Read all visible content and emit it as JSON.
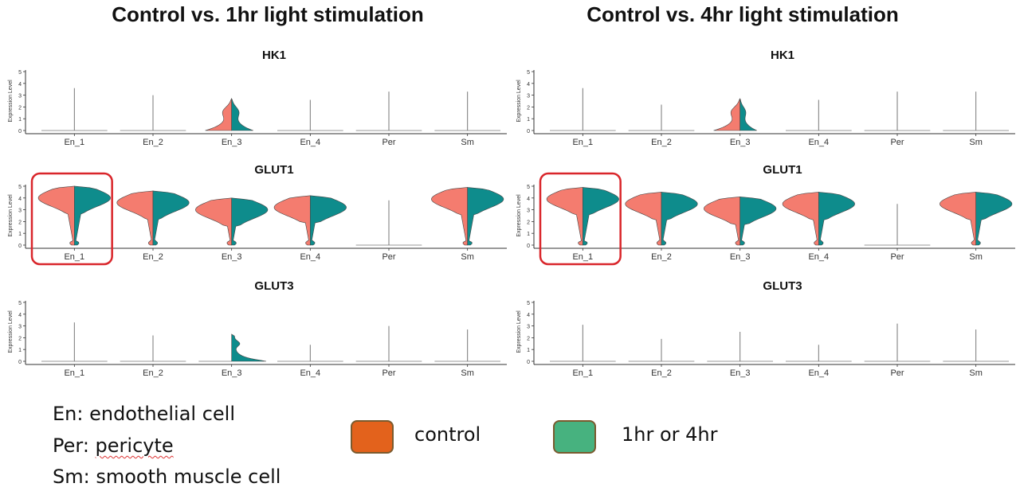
{
  "panels": [
    {
      "title": "Control vs. 1hr light stimulation",
      "rows": [
        {
          "gene": "HK1",
          "highlight_first": false,
          "cells": [
            {
              "cat": "En_1",
              "type": "line",
              "top": 3.6
            },
            {
              "cat": "En_2",
              "type": "line",
              "top": 3.0
            },
            {
              "cat": "En_3",
              "type": "violin",
              "top": 2.7,
              "ctrl_w": 0.55,
              "trt_w": 0.45
            },
            {
              "cat": "En_4",
              "type": "line",
              "top": 2.6
            },
            {
              "cat": "Per",
              "type": "line",
              "top": 3.3
            },
            {
              "cat": "Sm",
              "type": "line",
              "top": 3.3
            }
          ]
        },
        {
          "gene": "GLUT1",
          "highlight_first": true,
          "cells": [
            {
              "cat": "En_1",
              "type": "violin2",
              "top": 5.0
            },
            {
              "cat": "En_2",
              "type": "violin2",
              "top": 4.6
            },
            {
              "cat": "En_3",
              "type": "violin2",
              "top": 4.0
            },
            {
              "cat": "En_4",
              "type": "violin2",
              "top": 4.2
            },
            {
              "cat": "Per",
              "type": "line",
              "top": 3.8
            },
            {
              "cat": "Sm",
              "type": "violin2",
              "top": 4.9
            }
          ]
        },
        {
          "gene": "GLUT3",
          "highlight_first": false,
          "cells": [
            {
              "cat": "En_1",
              "type": "line",
              "top": 3.3
            },
            {
              "cat": "En_2",
              "type": "line",
              "top": 2.2
            },
            {
              "cat": "En_3",
              "type": "violin_trt",
              "top": 2.3
            },
            {
              "cat": "En_4",
              "type": "line",
              "top": 1.4
            },
            {
              "cat": "Per",
              "type": "line",
              "top": 3.0
            },
            {
              "cat": "Sm",
              "type": "line",
              "top": 2.7
            }
          ]
        }
      ]
    },
    {
      "title": "Control vs. 4hr light stimulation",
      "rows": [
        {
          "gene": "HK1",
          "highlight_first": false,
          "cells": [
            {
              "cat": "En_1",
              "type": "line",
              "top": 3.6
            },
            {
              "cat": "En_2",
              "type": "line",
              "top": 2.2
            },
            {
              "cat": "En_3",
              "type": "violin",
              "top": 2.7,
              "ctrl_w": 0.55,
              "trt_w": 0.35
            },
            {
              "cat": "En_4",
              "type": "line",
              "top": 2.6
            },
            {
              "cat": "Per",
              "type": "line",
              "top": 3.3
            },
            {
              "cat": "Sm",
              "type": "line",
              "top": 3.3
            }
          ]
        },
        {
          "gene": "GLUT1",
          "highlight_first": true,
          "cells": [
            {
              "cat": "En_1",
              "type": "violin2",
              "top": 4.9
            },
            {
              "cat": "En_2",
              "type": "violin2",
              "top": 4.5
            },
            {
              "cat": "En_3",
              "type": "violin2",
              "top": 4.1
            },
            {
              "cat": "En_4",
              "type": "violin2",
              "top": 4.5
            },
            {
              "cat": "Per",
              "type": "line",
              "top": 3.5
            },
            {
              "cat": "Sm",
              "type": "violin2",
              "top": 4.5
            }
          ]
        },
        {
          "gene": "GLUT3",
          "highlight_first": false,
          "cells": [
            {
              "cat": "En_1",
              "type": "line",
              "top": 3.1
            },
            {
              "cat": "En_2",
              "type": "line",
              "top": 1.9
            },
            {
              "cat": "En_3",
              "type": "line",
              "top": 2.5
            },
            {
              "cat": "En_4",
              "type": "line",
              "top": 1.4
            },
            {
              "cat": "Per",
              "type": "line",
              "top": 3.2
            },
            {
              "cat": "Sm",
              "type": "line",
              "top": 2.7
            }
          ]
        }
      ]
    }
  ],
  "y_axis": {
    "label": "Expression Level",
    "ticks": [
      "0",
      "1",
      "2",
      "3",
      "4",
      "5"
    ]
  },
  "colors": {
    "control": "#f47c6f",
    "treatment": "#0e8c8c",
    "highlight": "#d9262b",
    "legend_control": "#e3621c",
    "legend_treatment": "#47b27f"
  },
  "legend": {
    "control_label": "control",
    "treatment_label": "1hr or 4hr"
  },
  "footnotes": {
    "en_prefix": "En: ",
    "en_text": "endothelial cell",
    "per_prefix": "Per: ",
    "per_text": "pericyte",
    "sm_prefix": "Sm: ",
    "sm_text": "smooth muscle cell"
  },
  "chart_data": [
    {
      "type": "violin",
      "title": "Control vs. 1hr light stimulation — HK1",
      "categories": [
        "En_1",
        "En_2",
        "En_3",
        "En_4",
        "Per",
        "Sm"
      ],
      "ylabel": "Expression Level",
      "ylim": [
        0,
        5
      ],
      "series": [
        {
          "name": "control",
          "values": [
            0,
            0,
            2.7,
            0,
            0,
            0
          ]
        },
        {
          "name": "1hr or 4hr",
          "values": [
            0,
            0,
            2.7,
            0,
            0,
            0
          ]
        }
      ]
    },
    {
      "type": "violin",
      "title": "Control vs. 1hr light stimulation — GLUT1",
      "categories": [
        "En_1",
        "En_2",
        "En_3",
        "En_4",
        "Per",
        "Sm"
      ],
      "ylabel": "Expression Level",
      "ylim": [
        0,
        5
      ],
      "series": [
        {
          "name": "control",
          "values": [
            5.0,
            4.6,
            4.0,
            4.2,
            0,
            4.9
          ]
        },
        {
          "name": "1hr or 4hr",
          "values": [
            5.0,
            4.6,
            4.0,
            4.2,
            0,
            4.9
          ]
        }
      ]
    },
    {
      "type": "violin",
      "title": "Control vs. 1hr light stimulation — GLUT3",
      "categories": [
        "En_1",
        "En_2",
        "En_3",
        "En_4",
        "Per",
        "Sm"
      ],
      "ylabel": "Expression Level",
      "ylim": [
        0,
        5
      ],
      "series": [
        {
          "name": "control",
          "values": [
            0,
            0,
            0,
            0,
            0,
            0
          ]
        },
        {
          "name": "1hr or 4hr",
          "values": [
            0,
            0,
            2.3,
            0,
            0,
            0
          ]
        }
      ]
    },
    {
      "type": "violin",
      "title": "Control vs. 4hr light stimulation — HK1",
      "categories": [
        "En_1",
        "En_2",
        "En_3",
        "En_4",
        "Per",
        "Sm"
      ],
      "ylabel": "Expression Level",
      "ylim": [
        0,
        5
      ],
      "series": [
        {
          "name": "control",
          "values": [
            0,
            0,
            2.7,
            0,
            0,
            0
          ]
        },
        {
          "name": "1hr or 4hr",
          "values": [
            0,
            0,
            2.7,
            0,
            0,
            0
          ]
        }
      ]
    },
    {
      "type": "violin",
      "title": "Control vs. 4hr light stimulation — GLUT1",
      "categories": [
        "En_1",
        "En_2",
        "En_3",
        "En_4",
        "Per",
        "Sm"
      ],
      "ylabel": "Expression Level",
      "ylim": [
        0,
        5
      ],
      "series": [
        {
          "name": "control",
          "values": [
            4.9,
            4.5,
            4.1,
            4.5,
            0,
            4.5
          ]
        },
        {
          "name": "1hr or 4hr",
          "values": [
            4.9,
            4.5,
            4.1,
            4.5,
            0,
            4.5
          ]
        }
      ]
    },
    {
      "type": "violin",
      "title": "Control vs. 4hr light stimulation — GLUT3",
      "categories": [
        "En_1",
        "En_2",
        "En_3",
        "En_4",
        "Per",
        "Sm"
      ],
      "ylabel": "Expression Level",
      "ylim": [
        0,
        5
      ],
      "series": [
        {
          "name": "control",
          "values": [
            0,
            0,
            0,
            0,
            0,
            0
          ]
        },
        {
          "name": "1hr or 4hr",
          "values": [
            0,
            0,
            0,
            0,
            0,
            0
          ]
        }
      ]
    }
  ]
}
